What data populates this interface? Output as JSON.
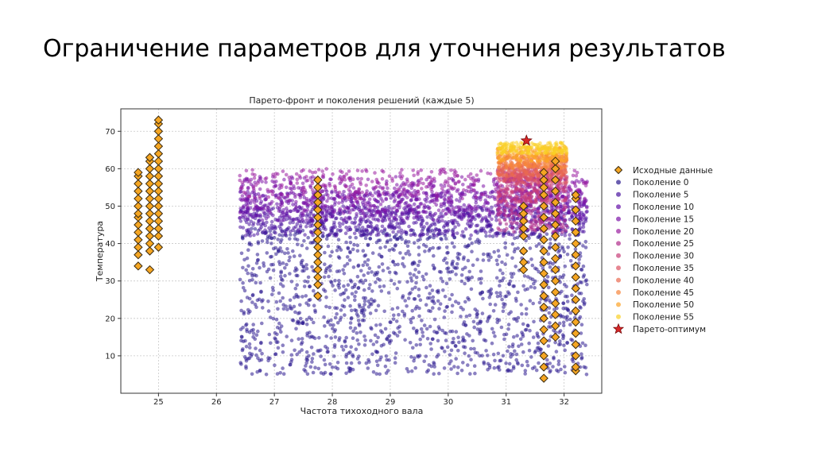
{
  "slide": {
    "title": "Ограничение параметров для уточнения результатов"
  },
  "chart_data": {
    "type": "scatter",
    "title": "Парето-фронт и поколения решений (каждые 5)",
    "xlabel": "Частота тихоходного вала",
    "ylabel": "Температура",
    "xlim": [
      24.35,
      32.65
    ],
    "ylim": [
      0,
      76
    ],
    "xticks": [
      "25",
      "26",
      "27",
      "28",
      "29",
      "30",
      "31",
      "32"
    ],
    "yticks": [
      "10",
      "20",
      "30",
      "40",
      "50",
      "60",
      "70"
    ],
    "grid": true,
    "legend_position": "right-outside",
    "series": [
      {
        "name": "Исходные данные",
        "color": "#f5a623",
        "marker": "diamond",
        "points": [
          [
            24.65,
            34
          ],
          [
            24.65,
            37
          ],
          [
            24.65,
            39
          ],
          [
            24.65,
            41
          ],
          [
            24.65,
            43
          ],
          [
            24.65,
            45
          ],
          [
            24.65,
            47
          ],
          [
            24.65,
            48
          ],
          [
            24.65,
            50
          ],
          [
            24.65,
            52
          ],
          [
            24.65,
            54
          ],
          [
            24.65,
            56
          ],
          [
            24.65,
            58
          ],
          [
            24.65,
            59
          ],
          [
            24.85,
            33
          ],
          [
            24.85,
            38
          ],
          [
            24.85,
            40
          ],
          [
            24.85,
            42
          ],
          [
            24.85,
            44
          ],
          [
            24.85,
            46
          ],
          [
            24.85,
            48
          ],
          [
            24.85,
            50
          ],
          [
            24.85,
            52
          ],
          [
            24.85,
            54
          ],
          [
            24.85,
            56
          ],
          [
            24.85,
            58
          ],
          [
            24.85,
            60
          ],
          [
            24.85,
            62
          ],
          [
            24.85,
            63
          ],
          [
            25.0,
            39
          ],
          [
            25.0,
            42
          ],
          [
            25.0,
            44
          ],
          [
            25.0,
            46
          ],
          [
            25.0,
            48
          ],
          [
            25.0,
            50
          ],
          [
            25.0,
            52
          ],
          [
            25.0,
            54
          ],
          [
            25.0,
            56
          ],
          [
            25.0,
            58
          ],
          [
            25.0,
            60
          ],
          [
            25.0,
            62
          ],
          [
            25.0,
            64
          ],
          [
            25.0,
            66
          ],
          [
            25.0,
            68
          ],
          [
            25.0,
            70
          ],
          [
            25.0,
            72
          ],
          [
            25.0,
            73
          ],
          [
            27.75,
            26
          ],
          [
            27.75,
            29
          ],
          [
            27.75,
            31
          ],
          [
            27.75,
            33
          ],
          [
            27.75,
            35
          ],
          [
            27.75,
            37
          ],
          [
            27.75,
            39
          ],
          [
            27.75,
            41
          ],
          [
            27.75,
            43
          ],
          [
            27.75,
            45
          ],
          [
            27.75,
            47
          ],
          [
            27.75,
            49
          ],
          [
            27.75,
            51
          ],
          [
            27.75,
            53
          ],
          [
            27.75,
            55
          ],
          [
            27.75,
            57
          ],
          [
            31.3,
            33
          ],
          [
            31.3,
            35
          ],
          [
            31.3,
            38
          ],
          [
            31.3,
            42
          ],
          [
            31.3,
            44
          ],
          [
            31.3,
            46
          ],
          [
            31.3,
            48
          ],
          [
            31.3,
            50
          ],
          [
            31.65,
            4
          ],
          [
            31.65,
            7
          ],
          [
            31.65,
            10
          ],
          [
            31.65,
            14
          ],
          [
            31.65,
            17
          ],
          [
            31.65,
            20
          ],
          [
            31.65,
            23
          ],
          [
            31.65,
            26
          ],
          [
            31.65,
            29
          ],
          [
            31.65,
            32
          ],
          [
            31.65,
            35
          ],
          [
            31.65,
            38
          ],
          [
            31.65,
            41
          ],
          [
            31.65,
            44
          ],
          [
            31.65,
            47
          ],
          [
            31.65,
            50
          ],
          [
            31.65,
            53
          ],
          [
            31.65,
            55
          ],
          [
            31.65,
            57
          ],
          [
            31.65,
            59
          ],
          [
            31.85,
            15
          ],
          [
            31.85,
            18
          ],
          [
            31.85,
            21
          ],
          [
            31.85,
            24
          ],
          [
            31.85,
            27
          ],
          [
            31.85,
            30
          ],
          [
            31.85,
            33
          ],
          [
            31.85,
            36
          ],
          [
            31.85,
            39
          ],
          [
            31.85,
            42
          ],
          [
            31.85,
            45
          ],
          [
            31.85,
            48
          ],
          [
            31.85,
            51
          ],
          [
            31.85,
            54
          ],
          [
            31.85,
            57
          ],
          [
            31.85,
            60
          ],
          [
            31.85,
            62
          ],
          [
            32.2,
            6
          ],
          [
            32.2,
            7
          ],
          [
            32.2,
            10
          ],
          [
            32.2,
            13
          ],
          [
            32.2,
            16
          ],
          [
            32.2,
            19
          ],
          [
            32.2,
            22
          ],
          [
            32.2,
            25
          ],
          [
            32.2,
            28
          ],
          [
            32.2,
            31
          ],
          [
            32.2,
            34
          ],
          [
            32.2,
            37
          ],
          [
            32.2,
            40
          ],
          [
            32.2,
            43
          ],
          [
            32.2,
            46
          ],
          [
            32.2,
            49
          ],
          [
            32.2,
            52
          ],
          [
            32.2,
            53
          ]
        ]
      },
      {
        "name": "Поколение 0",
        "color": "#2b1a8f",
        "marker": "circle",
        "region": {
          "x": [
            26.4,
            32.4
          ],
          "y": [
            5,
            44
          ]
        },
        "count": 1500
      },
      {
        "name": "Поколение 5",
        "color": "#4a14a0",
        "marker": "circle",
        "region": {
          "x": [
            26.4,
            32.4
          ],
          "y": [
            42,
            50
          ]
        },
        "count": 700
      },
      {
        "name": "Поколение 10",
        "color": "#6410a8",
        "marker": "circle",
        "region": {
          "x": [
            26.4,
            32.4
          ],
          "y": [
            46,
            54
          ]
        },
        "count": 600
      },
      {
        "name": "Поколение 15",
        "color": "#7d14a8",
        "marker": "circle",
        "region": {
          "x": [
            26.4,
            32.4
          ],
          "y": [
            48,
            58
          ]
        },
        "count": 500
      },
      {
        "name": "Поколение 20",
        "color": "#9a1ea0",
        "marker": "circle",
        "region": {
          "x": [
            26.4,
            32.4
          ],
          "y": [
            52,
            60
          ]
        },
        "count": 300
      },
      {
        "name": "Поколение 25",
        "color": "#b02d8c",
        "marker": "circle",
        "region": {
          "x": [
            30.85,
            32.05
          ],
          "y": [
            43,
            58
          ]
        },
        "count": 300
      },
      {
        "name": "Поколение 30",
        "color": "#c83e79",
        "marker": "circle",
        "region": {
          "x": [
            30.85,
            32.05
          ],
          "y": [
            51,
            60
          ]
        },
        "count": 200
      },
      {
        "name": "Поколение 35",
        "color": "#db5364",
        "marker": "circle",
        "region": {
          "x": [
            30.85,
            32.05
          ],
          "y": [
            56,
            61
          ]
        },
        "count": 180
      },
      {
        "name": "Поколение 40",
        "color": "#ea6a50",
        "marker": "circle",
        "region": {
          "x": [
            30.85,
            32.05
          ],
          "y": [
            58,
            63
          ]
        },
        "count": 180
      },
      {
        "name": "Поколение 45",
        "color": "#f6853a",
        "marker": "circle",
        "region": {
          "x": [
            30.85,
            32.05
          ],
          "y": [
            60,
            64
          ]
        },
        "count": 160
      },
      {
        "name": "Поколение 50",
        "color": "#fca326",
        "marker": "circle",
        "region": {
          "x": [
            30.85,
            32.05
          ],
          "y": [
            62,
            66
          ]
        },
        "count": 160
      },
      {
        "name": "Поколение 55",
        "color": "#fad025",
        "marker": "circle",
        "region": {
          "x": [
            30.85,
            32.05
          ],
          "y": [
            64,
            67
          ]
        },
        "count": 160
      },
      {
        "name": "Парето-оптимум",
        "color": "#d62728",
        "marker": "star",
        "points": [
          [
            31.35,
            67.5
          ]
        ]
      }
    ]
  }
}
